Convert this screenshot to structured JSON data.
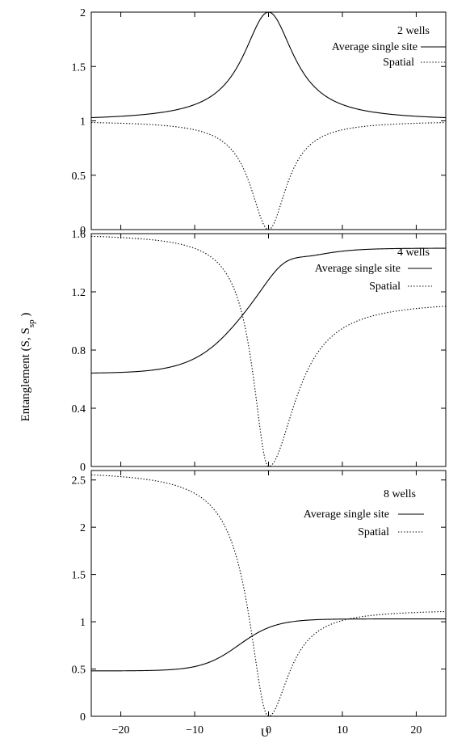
{
  "figure": {
    "ylabel_main": "Entanglement (S, S",
    "ylabel_sub": "sp",
    "ylabel_tail": " )",
    "xlabel": "U"
  },
  "chart_data": [
    {
      "type": "line",
      "annotation": "2 wells",
      "xlim": [
        -24,
        24
      ],
      "ylim": [
        0,
        2
      ],
      "yticks": [
        0,
        0.5,
        1,
        1.5,
        2
      ],
      "ytick_labels": [
        "0",
        "0.5",
        "1",
        "1.5",
        "2"
      ],
      "xticks": [
        -20,
        -10,
        0,
        10,
        20
      ],
      "xtick_labels": [],
      "legend_position": "top-right",
      "series": [
        {
          "name": "Average single site",
          "style": "solid",
          "model": "bump",
          "peak": 2.0,
          "base": 1.0,
          "scale": 4.2,
          "center": 0.0,
          "x": [
            -24,
            -20,
            -15,
            -10,
            -5,
            0,
            5,
            10,
            15,
            20,
            24
          ],
          "y": [
            1.06,
            1.09,
            1.14,
            1.26,
            1.54,
            2.0,
            1.54,
            1.26,
            1.14,
            1.09,
            1.06
          ]
        },
        {
          "name": "Spatial",
          "style": "dotted",
          "model": "dip",
          "depth": 0.0,
          "base": 1.0,
          "scale": 3.0,
          "center": 0.0,
          "x": [
            -24,
            -20,
            -15,
            -10,
            -5,
            0,
            5,
            10,
            15,
            20,
            24
          ],
          "y": [
            0.97,
            0.96,
            0.93,
            0.85,
            0.64,
            0.0,
            0.64,
            0.85,
            0.93,
            0.96,
            0.97
          ]
        }
      ]
    },
    {
      "type": "line",
      "annotation": "4 wells",
      "xlim": [
        -24,
        24
      ],
      "ylim": [
        0,
        1.6
      ],
      "yticks": [
        0,
        0.4,
        0.8,
        1.2,
        1.6
      ],
      "ytick_labels": [
        "0",
        "0.4",
        "0.8",
        "1.2",
        "1.6"
      ],
      "xticks": [
        -20,
        -10,
        0,
        10,
        20
      ],
      "xtick_labels": [],
      "legend_position": "top-right",
      "series": [
        {
          "name": "Average single site",
          "style": "solid",
          "model": "sigmoid_bump",
          "low": 0.64,
          "high": 1.5,
          "center": -3.0,
          "width": 3.5,
          "bump": 0.06,
          "bump_center": 2.0,
          "bump_width": 3.0,
          "x": [
            -24,
            -20,
            -15,
            -10,
            -5,
            0,
            2,
            5,
            10,
            15,
            20,
            24
          ],
          "y": [
            0.74,
            0.76,
            0.8,
            0.89,
            1.14,
            1.52,
            1.55,
            1.54,
            1.52,
            1.51,
            1.51,
            1.5
          ]
        },
        {
          "name": "Spatial",
          "style": "dotted",
          "model": "asym_dip",
          "left": 1.6,
          "right": 1.14,
          "depth": 0.0,
          "scale_left": 2.6,
          "scale_right": 4.5,
          "center": 0.0,
          "x": [
            -24,
            -20,
            -15,
            -10,
            -5,
            0,
            5,
            10,
            15,
            20,
            24
          ],
          "y": [
            1.56,
            1.55,
            1.51,
            1.42,
            1.1,
            0.0,
            0.63,
            0.86,
            0.96,
            1.0,
            1.02
          ]
        }
      ]
    },
    {
      "type": "line",
      "annotation": "8 wells",
      "xlim": [
        -24,
        24
      ],
      "ylim": [
        0,
        2.6
      ],
      "yticks": [
        0,
        0.5,
        1,
        1.5,
        2,
        2.5
      ],
      "ytick_labels": [
        "0",
        "0.5",
        "1",
        "1.5",
        "2",
        "2.5"
      ],
      "xticks": [
        -20,
        -10,
        0,
        10,
        20
      ],
      "xtick_labels": [
        "−20",
        "−10",
        "0",
        "10",
        "20"
      ],
      "legend_position": "top-right",
      "series": [
        {
          "name": "Average single site",
          "style": "solid",
          "model": "sigmoid",
          "low": 0.48,
          "high": 1.03,
          "center": -4.0,
          "width": 2.5,
          "x": [
            -24,
            -20,
            -15,
            -10,
            -5,
            0,
            5,
            10,
            15,
            20,
            24
          ],
          "y": [
            0.51,
            0.53,
            0.56,
            0.63,
            0.86,
            1.02,
            1.03,
            1.03,
            1.03,
            1.03,
            1.03
          ]
        },
        {
          "name": "Spatial",
          "style": "dotted",
          "model": "asym_dip",
          "left": 2.6,
          "right": 1.13,
          "depth": 0.0,
          "scale_left": 3.2,
          "scale_right": 3.4,
          "center": 0.0,
          "x": [
            -24,
            -20,
            -15,
            -10,
            -5,
            0,
            5,
            10,
            15,
            20,
            24
          ],
          "y": [
            2.52,
            2.5,
            2.44,
            2.28,
            1.6,
            0.0,
            0.76,
            0.9,
            0.96,
            0.98,
            1.0
          ]
        }
      ]
    }
  ]
}
